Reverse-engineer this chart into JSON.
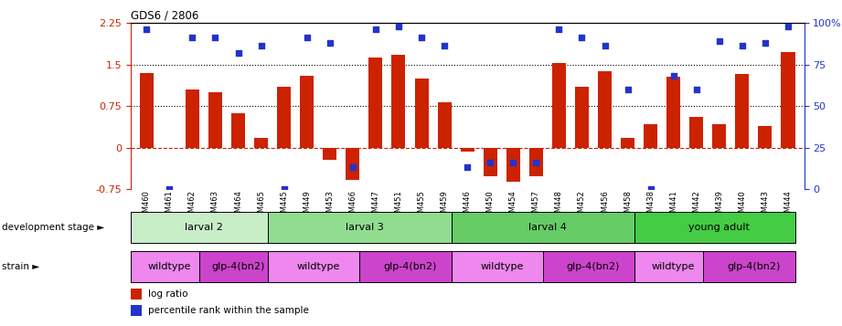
{
  "title": "GDS6 / 2806",
  "samples": [
    "GSM460",
    "GSM461",
    "GSM462",
    "GSM463",
    "GSM464",
    "GSM465",
    "GSM445",
    "GSM449",
    "GSM453",
    "GSM466",
    "GSM447",
    "GSM451",
    "GSM455",
    "GSM459",
    "GSM446",
    "GSM450",
    "GSM454",
    "GSM457",
    "GSM448",
    "GSM452",
    "GSM456",
    "GSM458",
    "GSM438",
    "GSM441",
    "GSM442",
    "GSM439",
    "GSM440",
    "GSM443",
    "GSM444"
  ],
  "log_ratio": [
    1.35,
    0.0,
    1.05,
    1.0,
    0.62,
    0.18,
    1.1,
    1.3,
    -0.22,
    -0.58,
    1.62,
    1.68,
    1.25,
    0.82,
    -0.08,
    -0.52,
    -0.62,
    -0.52,
    1.52,
    1.1,
    1.38,
    0.18,
    0.42,
    1.28,
    0.55,
    0.42,
    1.32,
    0.38,
    1.72
  ],
  "percentile": [
    96,
    0,
    91,
    91,
    82,
    86,
    0,
    91,
    88,
    13,
    96,
    98,
    91,
    86,
    13,
    16,
    16,
    16,
    96,
    91,
    86,
    60,
    0,
    68,
    60,
    89,
    86,
    88,
    98
  ],
  "bar_color": "#cc2200",
  "dot_color": "#2233cc",
  "hline_zero_color": "#cc2200",
  "hline_zero_style": "--",
  "hlines_dotted": [
    0.75,
    1.5
  ],
  "hline_dotted_color": "#000000",
  "ylim_left": [
    -0.75,
    2.25
  ],
  "ylim_right": [
    0,
    100
  ],
  "yticks_left": [
    -0.75,
    0.0,
    0.75,
    1.5,
    2.25
  ],
  "ytick_left_labels": [
    "-0.75",
    "0",
    "0.75",
    "1.5",
    "2.25"
  ],
  "yticks_right": [
    0,
    25,
    50,
    75,
    100
  ],
  "ytick_right_labels": [
    "0",
    "25",
    "50",
    "75",
    "100%"
  ],
  "dev_stages": [
    {
      "label": "larval 2",
      "start": 0,
      "end": 6,
      "color": "#c8eec8"
    },
    {
      "label": "larval 3",
      "start": 6,
      "end": 14,
      "color": "#90dd90"
    },
    {
      "label": "larval 4",
      "start": 14,
      "end": 22,
      "color": "#66cc66"
    },
    {
      "label": "young adult",
      "start": 22,
      "end": 29,
      "color": "#44cc44"
    }
  ],
  "strains": [
    {
      "label": "wildtype",
      "start": 0,
      "end": 3,
      "color": "#ee88ee"
    },
    {
      "label": "glp-4(bn2)",
      "start": 3,
      "end": 6,
      "color": "#cc44cc"
    },
    {
      "label": "wildtype",
      "start": 6,
      "end": 10,
      "color": "#ee88ee"
    },
    {
      "label": "glp-4(bn2)",
      "start": 10,
      "end": 14,
      "color": "#cc44cc"
    },
    {
      "label": "wildtype",
      "start": 14,
      "end": 18,
      "color": "#ee88ee"
    },
    {
      "label": "glp-4(bn2)",
      "start": 18,
      "end": 22,
      "color": "#cc44cc"
    },
    {
      "label": "wildtype",
      "start": 22,
      "end": 25,
      "color": "#ee88ee"
    },
    {
      "label": "glp-4(bn2)",
      "start": 25,
      "end": 29,
      "color": "#cc44cc"
    }
  ],
  "legend_items": [
    {
      "label": "log ratio",
      "color": "#cc2200"
    },
    {
      "label": "percentile rank within the sample",
      "color": "#2233cc"
    }
  ],
  "dev_stage_label": "development stage",
  "strain_label": "strain",
  "arrow_char": "►"
}
